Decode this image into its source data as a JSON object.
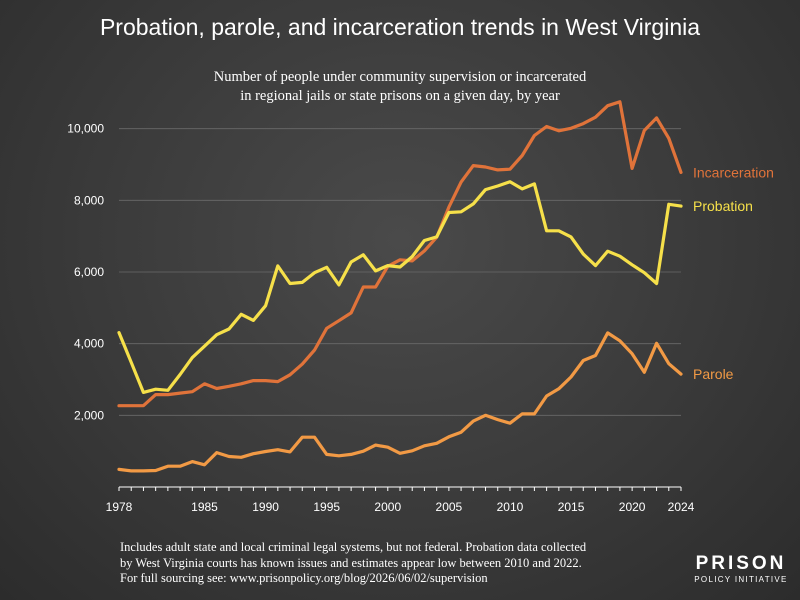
{
  "title": "Probation, parole, and incarceration trends in West Virginia",
  "subtitle_line1": "Number of people under community supervision or incarcerated",
  "subtitle_line2": "in regional jails or state prisons on a given day, by year",
  "footnote_line1": "Includes adult state and local criminal legal systems, but not federal. Probation data collected",
  "footnote_line2": "by West Virginia courts has known issues and estimates appear low between 2010 and 2022.",
  "footnote_line3": "For full sourcing see: www.prisonpolicy.org/blog/2026/06/02/supervision",
  "logo_top": "PRISON",
  "logo_bottom": "POLICY INITIATIVE",
  "chart_data": {
    "type": "line",
    "x": [
      1978,
      1979,
      1980,
      1981,
      1982,
      1983,
      1984,
      1985,
      1986,
      1987,
      1988,
      1989,
      1990,
      1991,
      1992,
      1993,
      1994,
      1995,
      1996,
      1997,
      1998,
      1999,
      2000,
      2001,
      2002,
      2003,
      2004,
      2005,
      2006,
      2007,
      2008,
      2009,
      2010,
      2011,
      2012,
      2013,
      2014,
      2015,
      2016,
      2017,
      2018,
      2019,
      2020,
      2021,
      2022,
      2023,
      2024
    ],
    "xlim": [
      1978,
      2024
    ],
    "ylim": [
      0,
      10800
    ],
    "x_ticks": [
      "1978",
      "1985",
      "1990",
      "1995",
      "2000",
      "2005",
      "2010",
      "2015",
      "2020",
      "2024"
    ],
    "y_ticks": [
      "2,000",
      "4,000",
      "6,000",
      "8,000",
      "10,000"
    ],
    "y_tick_values": [
      2000,
      4000,
      6000,
      8000,
      10000
    ],
    "grid": true,
    "series": [
      {
        "name": "Incarceration",
        "color": "#e0733a",
        "values": [
          2270,
          2270,
          2270,
          2580,
          2580,
          2620,
          2660,
          2880,
          2750,
          2810,
          2880,
          2970,
          2970,
          2940,
          3130,
          3430,
          3820,
          4430,
          4640,
          4860,
          5580,
          5580,
          6160,
          6340,
          6310,
          6590,
          6970,
          7810,
          8510,
          8970,
          8930,
          8850,
          8870,
          9250,
          9810,
          10060,
          9940,
          10010,
          10140,
          10320,
          10640,
          10750,
          8890,
          9950,
          10300,
          9730,
          8780
        ]
      },
      {
        "name": "Probation",
        "color": "#f6e04a",
        "values": [
          4310,
          3480,
          2640,
          2730,
          2700,
          3140,
          3610,
          3930,
          4250,
          4410,
          4820,
          4650,
          5060,
          6170,
          5680,
          5710,
          5980,
          6130,
          5640,
          6280,
          6480,
          6030,
          6180,
          6140,
          6430,
          6880,
          6980,
          7660,
          7680,
          7900,
          8300,
          8400,
          8520,
          8320,
          8460,
          7150,
          7150,
          6980,
          6500,
          6180,
          6580,
          6440,
          6200,
          5980,
          5680,
          7890,
          7840
        ]
      },
      {
        "name": "Parole",
        "color": "#f29a45",
        "values": [
          490,
          450,
          450,
          460,
          580,
          580,
          710,
          620,
          960,
          850,
          830,
          930,
          990,
          1040,
          980,
          1390,
          1390,
          910,
          870,
          910,
          1000,
          1170,
          1110,
          940,
          1010,
          1150,
          1220,
          1400,
          1530,
          1840,
          2000,
          1880,
          1780,
          2040,
          2040,
          2540,
          2740,
          3070,
          3530,
          3670,
          4300,
          4080,
          3720,
          3200,
          4010,
          3440,
          3150
        ]
      }
    ]
  }
}
